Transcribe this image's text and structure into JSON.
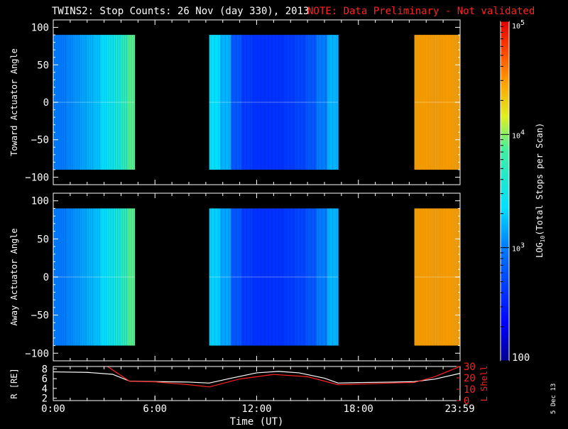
{
  "header": {
    "title": "TWINS2: Stop Counts: 26 Nov (day 330), 2013",
    "note": "NOTE: Data Preliminary - Not validated"
  },
  "stamp": "5 Dec 13",
  "colors": {
    "background": "#000000",
    "axes": "#ffffff",
    "note": "#ff2020",
    "l_shell": "#ff2020",
    "r_line": "#ffffff"
  },
  "chart_data": [
    {
      "type": "heatmap",
      "name": "toward",
      "ylabel": "Toward Actuator Angle",
      "xlim": [
        0,
        24
      ],
      "ylim": [
        -110,
        110
      ],
      "y_extent": [
        -90,
        90
      ],
      "yticks": [
        -100,
        -50,
        0,
        50,
        100
      ],
      "yticklabels": [
        "−100",
        "−50",
        "0",
        "50",
        "100"
      ],
      "blocks": [
        {
          "t_start": 0.0,
          "t_end": 4.8,
          "log_profile": [
            3.0,
            3.0,
            3.05,
            3.1,
            3.15,
            3.2,
            3.25,
            3.35,
            3.45,
            3.55,
            3.7,
            3.9
          ]
        },
        {
          "t_start": 9.2,
          "t_end": 16.8,
          "log_profile": [
            3.35,
            3.2,
            2.8,
            2.65,
            2.6,
            2.6,
            2.6,
            2.65,
            2.7,
            2.8,
            3.0,
            3.2
          ]
        },
        {
          "t_start": 21.3,
          "t_end": 23.99,
          "log_profile": [
            4.45,
            4.45,
            4.45,
            4.45,
            4.45,
            4.45,
            4.45,
            4.45,
            4.45,
            4.45
          ]
        }
      ]
    },
    {
      "type": "heatmap",
      "name": "away",
      "ylabel": "Away Actuator Angle",
      "xlim": [
        0,
        24
      ],
      "ylim": [
        -110,
        110
      ],
      "y_extent": [
        -90,
        90
      ],
      "yticks": [
        -100,
        -50,
        0,
        50,
        100
      ],
      "yticklabels": [
        "−100",
        "−50",
        "0",
        "50",
        "100"
      ],
      "blocks": [
        {
          "t_start": 0.0,
          "t_end": 4.8,
          "log_profile": [
            3.0,
            3.0,
            3.05,
            3.1,
            3.15,
            3.2,
            3.25,
            3.35,
            3.45,
            3.55,
            3.7,
            3.9
          ]
        },
        {
          "t_start": 9.2,
          "t_end": 16.8,
          "log_profile": [
            3.3,
            3.15,
            2.8,
            2.65,
            2.6,
            2.6,
            2.6,
            2.65,
            2.7,
            2.8,
            3.0,
            3.2
          ]
        },
        {
          "t_start": 21.3,
          "t_end": 23.99,
          "log_profile": [
            4.45,
            4.45,
            4.45,
            4.45,
            4.45,
            4.45,
            4.45,
            4.45,
            4.45,
            4.45
          ]
        }
      ]
    },
    {
      "type": "line",
      "name": "orbit",
      "ylabel": "R [RE]",
      "y2label": "L Shell",
      "xlabel": "Time (UT)",
      "xlim": [
        0,
        24
      ],
      "xticks": [
        0,
        6,
        12,
        18,
        23.983
      ],
      "xticklabels": [
        "0:00",
        "6:00",
        "12:00",
        "18:00",
        "23:59"
      ],
      "ylim": [
        1.5,
        8.5
      ],
      "yticks": [
        2,
        4,
        6,
        8
      ],
      "yticklabels": [
        "2",
        "4",
        "6",
        "8"
      ],
      "y2lim": [
        0,
        30
      ],
      "y2ticks": [
        0,
        10,
        20,
        30
      ],
      "y2ticklabels": [
        "0",
        "10",
        "20",
        "30"
      ],
      "series": [
        {
          "axis": "left",
          "x": [
            0,
            2,
            3.5,
            4.5,
            6,
            8,
            9.2,
            10.5,
            12,
            13.3,
            14.5,
            16,
            16.8,
            18,
            20,
            21.3,
            22.5,
            24
          ],
          "y": [
            7.4,
            7.3,
            6.9,
            5.5,
            5.4,
            5.3,
            5.1,
            6.1,
            7.2,
            7.5,
            7.2,
            6.1,
            5.1,
            5.2,
            5.3,
            5.4,
            5.9,
            7.1
          ]
        },
        {
          "axis": "right",
          "x": [
            3.2,
            4.5,
            6,
            8,
            9.2,
            11,
            13,
            15,
            16.8,
            18,
            20,
            21.3,
            22.5,
            24
          ],
          "y": [
            30,
            17,
            16.5,
            14,
            12,
            19,
            23,
            21,
            14,
            14.5,
            15.5,
            16,
            21,
            30
          ]
        }
      ]
    }
  ],
  "colorbar": {
    "label": "LOG10(Total Stops per Scan)",
    "label_log": "LOG",
    "label_sub": "10",
    "label_rest": "(Total Stops per Scan)",
    "log_min": 2,
    "log_max": 5,
    "ticks": [
      {
        "log": 5,
        "base": "10",
        "exp": "5",
        "text": ""
      },
      {
        "log": 4,
        "base": "10",
        "exp": "4",
        "text": ""
      },
      {
        "log": 3,
        "base": "10",
        "exp": "3",
        "text": ""
      },
      {
        "log": 2,
        "base": "",
        "exp": "",
        "text": "100"
      }
    ]
  }
}
